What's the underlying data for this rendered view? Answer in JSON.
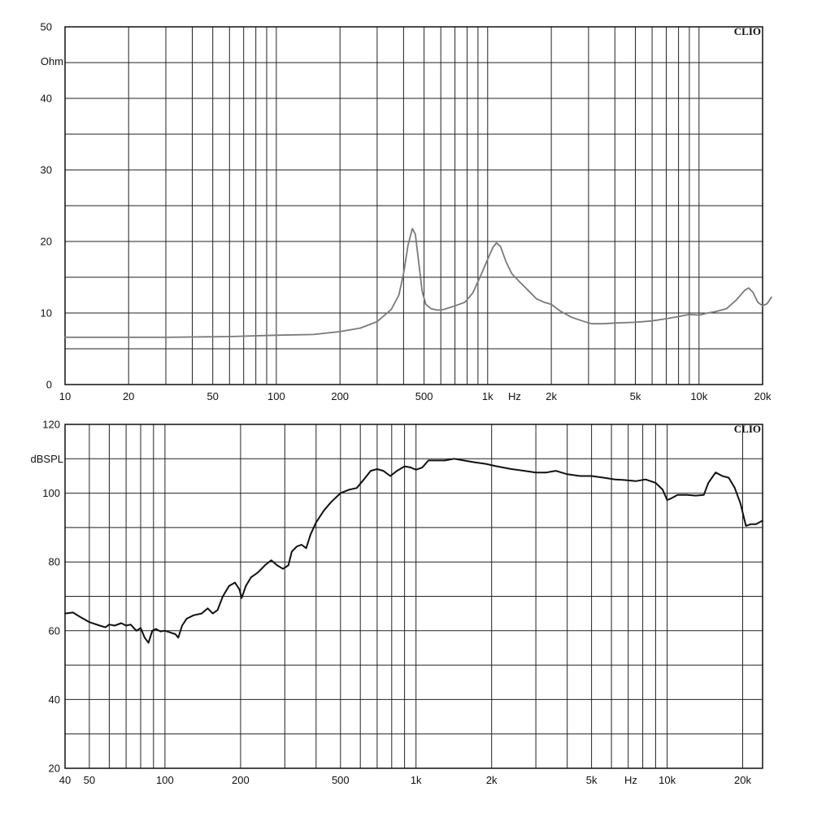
{
  "chart_data": [
    {
      "type": "line",
      "x_scale": "log",
      "xlim": [
        10,
        20000
      ],
      "ylim": [
        0,
        50
      ],
      "xlabel": "Hz",
      "ylabel": "Ohm",
      "brand": "CLIO",
      "grid": true,
      "x_ticks": [
        10,
        20,
        30,
        40,
        50,
        60,
        70,
        80,
        90,
        100,
        200,
        300,
        400,
        500,
        600,
        700,
        800,
        900,
        1000,
        2000,
        3000,
        4000,
        5000,
        6000,
        7000,
        8000,
        9000,
        10000,
        20000
      ],
      "x_tick_labels": [
        "10",
        "20",
        "",
        "",
        "50",
        "",
        "",
        "",
        "",
        "100",
        "200",
        "",
        "",
        "500",
        "",
        "",
        "",
        "",
        "1k",
        "2k",
        "",
        "",
        "5k",
        "",
        "",
        "",
        "",
        "10k",
        "20k"
      ],
      "y_ticks": [
        0,
        5,
        10,
        15,
        20,
        25,
        30,
        35,
        40,
        45,
        50
      ],
      "y_tick_labels": [
        "0",
        "",
        "10",
        "",
        "20",
        "",
        "30",
        "",
        "40",
        "",
        "50"
      ],
      "series": [
        {
          "color": "#7a7a7a",
          "points": [
            [
              10,
              6.6
            ],
            [
              30,
              6.6
            ],
            [
              60,
              6.7
            ],
            [
              100,
              6.9
            ],
            [
              150,
              7.0
            ],
            [
              200,
              7.4
            ],
            [
              250,
              7.9
            ],
            [
              300,
              8.8
            ],
            [
              350,
              10.5
            ],
            [
              380,
              12.5
            ],
            [
              400,
              15.5
            ],
            [
              420,
              19.5
            ],
            [
              440,
              21.8
            ],
            [
              455,
              21.0
            ],
            [
              470,
              17.5
            ],
            [
              490,
              13.0
            ],
            [
              510,
              11.2
            ],
            [
              540,
              10.6
            ],
            [
              580,
              10.4
            ],
            [
              620,
              10.5
            ],
            [
              700,
              11.0
            ],
            [
              780,
              11.5
            ],
            [
              850,
              12.8
            ],
            [
              920,
              15.0
            ],
            [
              1000,
              17.5
            ],
            [
              1060,
              19.2
            ],
            [
              1100,
              19.8
            ],
            [
              1150,
              19.3
            ],
            [
              1220,
              17.2
            ],
            [
              1300,
              15.5
            ],
            [
              1400,
              14.5
            ],
            [
              1550,
              13.2
            ],
            [
              1700,
              12.0
            ],
            [
              1850,
              11.5
            ],
            [
              2000,
              11.2
            ],
            [
              2200,
              10.3
            ],
            [
              2500,
              9.4
            ],
            [
              2800,
              8.9
            ],
            [
              3100,
              8.5
            ],
            [
              3500,
              8.5
            ],
            [
              4000,
              8.6
            ],
            [
              5000,
              8.7
            ],
            [
              6000,
              8.9
            ],
            [
              7000,
              9.2
            ],
            [
              8000,
              9.5
            ],
            [
              9000,
              9.8
            ],
            [
              10000,
              9.7
            ],
            [
              11000,
              10.0
            ],
            [
              12000,
              10.2
            ],
            [
              13500,
              10.6
            ],
            [
              15000,
              11.8
            ],
            [
              16500,
              13.2
            ],
            [
              17200,
              13.5
            ],
            [
              18000,
              12.9
            ],
            [
              19000,
              11.5
            ],
            [
              20000,
              11.0
            ],
            [
              21000,
              11.3
            ],
            [
              22000,
              12.2
            ]
          ]
        }
      ]
    },
    {
      "type": "line",
      "x_scale": "log",
      "xlim": [
        40,
        24000
      ],
      "ylim": [
        20,
        120
      ],
      "xlabel": "Hz",
      "ylabel": "dBSPL",
      "brand": "CLIO",
      "grid": true,
      "x_ticks": [
        40,
        50,
        60,
        70,
        80,
        90,
        100,
        200,
        300,
        400,
        500,
        600,
        700,
        800,
        900,
        1000,
        2000,
        3000,
        4000,
        5000,
        6000,
        7000,
        8000,
        9000,
        10000,
        20000
      ],
      "x_tick_labels": [
        "40",
        "50",
        "",
        "",
        "",
        "",
        "100",
        "200",
        "",
        "",
        "500",
        "",
        "",
        "",
        "",
        "1k",
        "2k",
        "",
        "",
        "5k",
        "",
        "",
        "",
        "",
        "10k",
        "20k"
      ],
      "y_ticks": [
        20,
        30,
        40,
        50,
        60,
        70,
        80,
        90,
        100,
        110,
        120
      ],
      "y_tick_labels": [
        "20",
        "",
        "40",
        "",
        "60",
        "",
        "80",
        "",
        "100",
        "",
        "120"
      ],
      "series": [
        {
          "color": "#111111",
          "points": [
            [
              40,
              65.0
            ],
            [
              43,
              65.3
            ],
            [
              46,
              64.0
            ],
            [
              50,
              62.5
            ],
            [
              55,
              61.5
            ],
            [
              58,
              61.0
            ],
            [
              60,
              61.8
            ],
            [
              63,
              61.5
            ],
            [
              67,
              62.2
            ],
            [
              70,
              61.5
            ],
            [
              73,
              61.8
            ],
            [
              77,
              60.0
            ],
            [
              80,
              60.8
            ],
            [
              83,
              58.0
            ],
            [
              86,
              56.5
            ],
            [
              89,
              60.0
            ],
            [
              92,
              60.5
            ],
            [
              96,
              59.8
            ],
            [
              100,
              60.0
            ],
            [
              105,
              59.5
            ],
            [
              110,
              59.0
            ],
            [
              113,
              58.0
            ],
            [
              117,
              61.5
            ],
            [
              122,
              63.5
            ],
            [
              130,
              64.5
            ],
            [
              140,
              65.0
            ],
            [
              148,
              66.5
            ],
            [
              155,
              65.0
            ],
            [
              162,
              66.0
            ],
            [
              170,
              70.0
            ],
            [
              180,
              73.0
            ],
            [
              190,
              74.0
            ],
            [
              198,
              72.0
            ],
            [
              202,
              69.5
            ],
            [
              210,
              73.0
            ],
            [
              220,
              75.5
            ],
            [
              235,
              77.0
            ],
            [
              250,
              79.0
            ],
            [
              265,
              80.5
            ],
            [
              280,
              79.0
            ],
            [
              295,
              78.0
            ],
            [
              310,
              79.0
            ],
            [
              320,
              83.0
            ],
            [
              335,
              84.5
            ],
            [
              350,
              85.0
            ],
            [
              365,
              84.0
            ],
            [
              380,
              88.0
            ],
            [
              400,
              91.5
            ],
            [
              430,
              95.0
            ],
            [
              460,
              97.5
            ],
            [
              500,
              100.0
            ],
            [
              540,
              101.0
            ],
            [
              580,
              101.5
            ],
            [
              620,
              104.0
            ],
            [
              660,
              106.5
            ],
            [
              700,
              107.0
            ],
            [
              740,
              106.5
            ],
            [
              790,
              105.0
            ],
            [
              840,
              106.5
            ],
            [
              900,
              107.8
            ],
            [
              950,
              107.5
            ],
            [
              1000,
              106.8
            ],
            [
              1060,
              107.5
            ],
            [
              1120,
              109.5
            ],
            [
              1200,
              109.5
            ],
            [
              1300,
              109.5
            ],
            [
              1420,
              110.0
            ],
            [
              1550,
              109.5
            ],
            [
              1700,
              109.0
            ],
            [
              1900,
              108.5
            ],
            [
              2100,
              107.8
            ],
            [
              2400,
              107.0
            ],
            [
              2700,
              106.5
            ],
            [
              3000,
              106.0
            ],
            [
              3300,
              106.0
            ],
            [
              3600,
              106.5
            ],
            [
              4000,
              105.5
            ],
            [
              4500,
              105.0
            ],
            [
              5000,
              105.0
            ],
            [
              5600,
              104.5
            ],
            [
              6200,
              104.0
            ],
            [
              6800,
              103.8
            ],
            [
              7500,
              103.5
            ],
            [
              8200,
              104.0
            ],
            [
              9000,
              103.0
            ],
            [
              9600,
              101.0
            ],
            [
              10000,
              98.0
            ],
            [
              10400,
              98.5
            ],
            [
              11000,
              99.5
            ],
            [
              12000,
              99.5
            ],
            [
              13000,
              99.3
            ],
            [
              14000,
              99.5
            ],
            [
              14600,
              103.0
            ],
            [
              15600,
              106.0
            ],
            [
              16600,
              105.0
            ],
            [
              17600,
              104.5
            ],
            [
              18600,
              101.5
            ],
            [
              19600,
              97.0
            ],
            [
              20600,
              90.5
            ],
            [
              21600,
              91.0
            ],
            [
              22600,
              91.0
            ],
            [
              24000,
              92.0
            ]
          ]
        }
      ]
    }
  ]
}
